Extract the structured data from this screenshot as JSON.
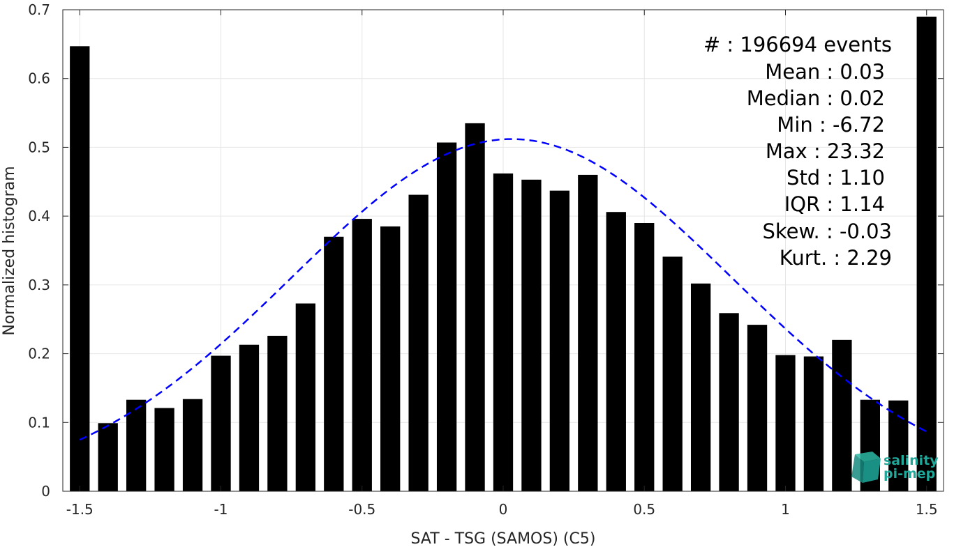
{
  "chart_data": {
    "type": "bar",
    "xlabel": "SAT - TSG (SAMOS) (C5)",
    "ylabel": "Normalized histogram",
    "xlim": [
      -1.56,
      1.56
    ],
    "ylim": [
      0,
      0.7
    ],
    "xticks": [
      -1.5,
      -1,
      -0.5,
      0,
      0.5,
      1,
      1.5
    ],
    "xtick_labels": [
      "-1.5",
      "-1",
      "-0.5",
      "0",
      "0.5",
      "1",
      "1.5"
    ],
    "yticks": [
      0,
      0.1,
      0.2,
      0.3,
      0.4,
      0.5,
      0.6,
      0.7
    ],
    "ytick_labels": [
      "0",
      "0.1",
      "0.2",
      "0.3",
      "0.4",
      "0.5",
      "0.6",
      "0.7"
    ],
    "grid": true,
    "bar_color": "#000000",
    "curve_color": "#0000ff",
    "bar_width": 0.07,
    "x": [
      -1.5,
      -1.4,
      -1.3,
      -1.2,
      -1.1,
      -1.0,
      -0.9,
      -0.8,
      -0.7,
      -0.6,
      -0.5,
      -0.4,
      -0.3,
      -0.2,
      -0.1,
      0.0,
      0.1,
      0.2,
      0.3,
      0.4,
      0.5,
      0.6,
      0.7,
      0.8,
      0.9,
      1.0,
      1.1,
      1.2,
      1.3,
      1.4,
      1.5
    ],
    "values": [
      0.647,
      0.099,
      0.133,
      0.121,
      0.134,
      0.197,
      0.213,
      0.226,
      0.273,
      0.37,
      0.396,
      0.385,
      0.431,
      0.507,
      0.535,
      0.462,
      0.453,
      0.437,
      0.46,
      0.406,
      0.39,
      0.341,
      0.302,
      0.259,
      0.242,
      0.198,
      0.196,
      0.22,
      0.133,
      0.132,
      0.69
    ],
    "fit_curve": {
      "style": "dashed",
      "mean": 0.03,
      "std": 0.78,
      "peak": 0.512,
      "x_range": [
        -1.5,
        1.5
      ]
    }
  },
  "stats": {
    "lines": [
      "#  : 196694 events",
      "Mean : 0.03",
      "Median : 0.02",
      "Min : -6.72",
      "Max : 23.32",
      "Std : 1.10",
      "IQR : 1.14",
      "Skew. : -0.03",
      "Kurt. : 2.29"
    ]
  },
  "logo": {
    "line1": "salinity",
    "line2": "pi-mep",
    "color": "#1fa89a"
  }
}
